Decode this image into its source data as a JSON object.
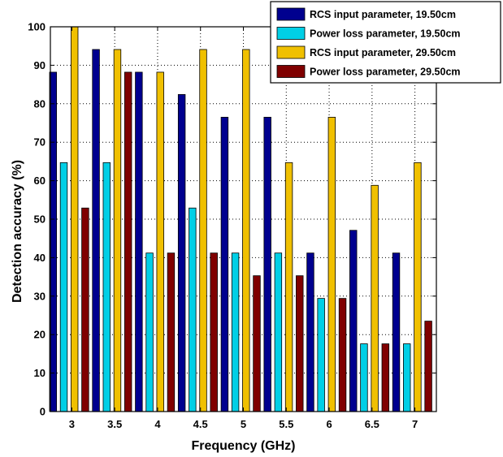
{
  "chart_data": {
    "type": "bar",
    "xlabel": "Frequency (GHz)",
    "ylabel": "Detection accuracy (%)",
    "ylim": [
      0,
      100
    ],
    "yticks": [
      0,
      10,
      20,
      30,
      40,
      50,
      60,
      70,
      80,
      90,
      100
    ],
    "categories": [
      "3",
      "3.5",
      "4",
      "4.5",
      "5",
      "5.5",
      "6",
      "6.5",
      "7"
    ],
    "grid": true,
    "legend_position": "top-right",
    "series": [
      {
        "name": "RCS input parameter, 19.50cm",
        "color": "#00008f",
        "values": [
          88.2,
          94.1,
          88.2,
          82.4,
          76.5,
          76.5,
          41.2,
          47.1,
          41.2
        ]
      },
      {
        "name": "Power loss parameter, 19.50cm",
        "color": "#00cfe6",
        "values": [
          64.7,
          64.7,
          41.2,
          52.9,
          41.2,
          41.2,
          29.4,
          17.6,
          17.6
        ]
      },
      {
        "name": "RCS input parameter, 29.50cm",
        "color": "#f0c000",
        "values": [
          100,
          94.1,
          88.2,
          94.1,
          94.1,
          64.7,
          76.5,
          58.8,
          64.7
        ]
      },
      {
        "name": "Power loss parameter, 29.50cm",
        "color": "#800000",
        "values": [
          52.9,
          88.2,
          41.2,
          41.2,
          35.3,
          35.3,
          29.4,
          17.6,
          23.5
        ]
      }
    ]
  }
}
